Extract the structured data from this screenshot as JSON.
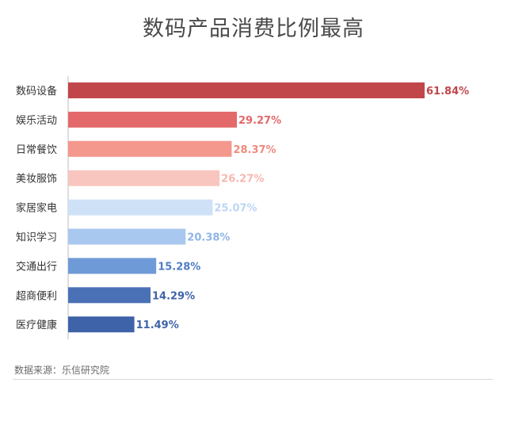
{
  "title": "数码产品消费比例最高",
  "source": "数据来源：乐信研究院",
  "chart_data": {
    "type": "bar",
    "orientation": "horizontal",
    "title": "数码产品消费比例最高",
    "categories": [
      "数码设备",
      "娱乐活动",
      "日常餐饮",
      "美妆服饰",
      "家居家电",
      "知识学习",
      "交通出行",
      "超商便利",
      "医疗健康"
    ],
    "values": [
      61.84,
      29.27,
      28.37,
      26.27,
      25.07,
      20.38,
      15.28,
      14.29,
      11.49
    ],
    "value_labels": [
      "61.84%",
      "29.27%",
      "28.37%",
      "26.27%",
      "25.07%",
      "20.38%",
      "15.28%",
      "14.29%",
      "11.49%"
    ],
    "unit": "%",
    "xlim": [
      0,
      61.84
    ],
    "grid": false,
    "legend": "none",
    "colors": [
      "#c0464a",
      "#e4696b",
      "#f4978c",
      "#f9c6bf",
      "#cfe1f7",
      "#a9c8ef",
      "#6e9ad7",
      "#4a71b6",
      "#3f63a8"
    ],
    "label_colors": [
      "#c0464a",
      "#e4696b",
      "#f08a7e",
      "#f7b8b0",
      "#bcd6f4",
      "#8fb5e6",
      "#4f7cc3",
      "#3f63a8",
      "#3f63a8"
    ]
  }
}
